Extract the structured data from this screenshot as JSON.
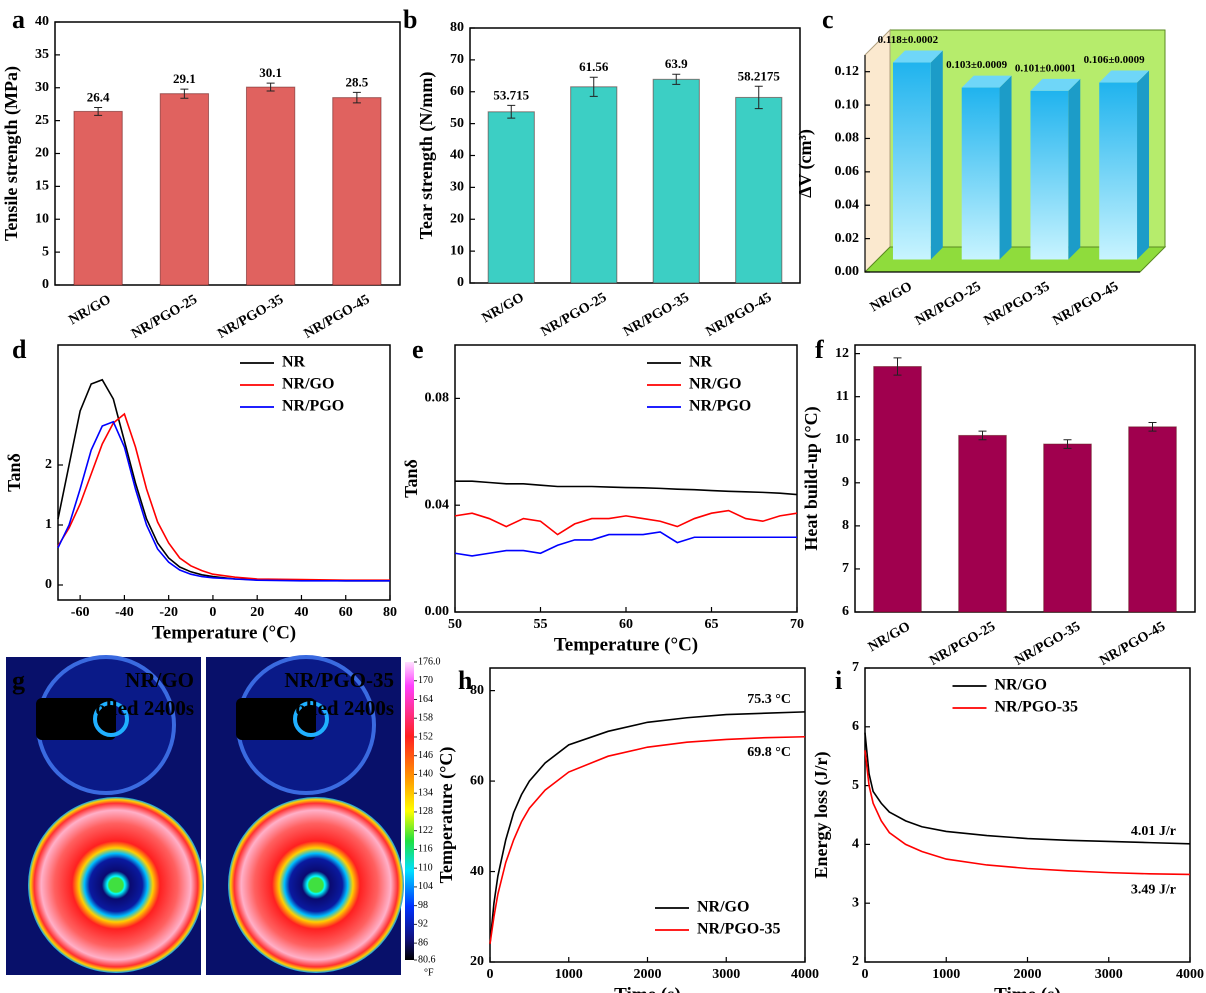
{
  "chart_data": [
    {
      "label": "a",
      "type": "bar",
      "ylabel": "Tensile strength (MPa)",
      "categories": [
        "NR/GO",
        "NR/PGO-25",
        "NR/PGO-35",
        "NR/PGO-45"
      ],
      "values": [
        26.4,
        29.1,
        30.1,
        28.5
      ],
      "errors": [
        0.6,
        0.7,
        0.6,
        0.8
      ],
      "data_labels": true,
      "color": "#e0625f",
      "ylim": [
        0,
        40
      ],
      "yticks": [
        0,
        5,
        10,
        15,
        20,
        25,
        30,
        35,
        40
      ]
    },
    {
      "label": "b",
      "type": "bar",
      "ylabel": "Tear strength (N/mm)",
      "categories": [
        "NR/GO",
        "NR/PGO-25",
        "NR/PGO-35",
        "NR/PGO-45"
      ],
      "values": [
        53.715,
        61.56,
        63.9,
        58.2175
      ],
      "errors": [
        2,
        3,
        1.6,
        3.5
      ],
      "data_labels": true,
      "color": "#3ccfc4",
      "ylim": [
        0,
        80
      ],
      "yticks": [
        0,
        10,
        20,
        30,
        40,
        50,
        60,
        70,
        80
      ]
    },
    {
      "label": "c",
      "type": "bar3d",
      "ylabel": "ΔV (cm³)",
      "categories": [
        "NR/GO",
        "NR/PGO-25",
        "NR/PGO-35",
        "NR/PGO-45"
      ],
      "values": [
        0.118,
        0.103,
        0.101,
        0.106
      ],
      "value_labels": [
        "0.118±0.0002",
        "0.103±0.0009",
        "0.101±0.0001",
        "0.106±0.0009"
      ],
      "color": "#35c2ee",
      "ylim": [
        0,
        0.13
      ],
      "yticks": [
        {
          "value": 0,
          "label": "0.00"
        },
        {
          "value": 0.02,
          "label": "0.02"
        },
        {
          "value": 0.04,
          "label": "0.04"
        },
        {
          "value": 0.06,
          "label": "0.06"
        },
        {
          "value": 0.08,
          "label": "0.08"
        },
        {
          "value": 0.1,
          "label": "0.10"
        },
        {
          "value": 0.12,
          "label": "0.12"
        }
      ]
    },
    {
      "label": "d",
      "type": "line",
      "xlabel": "Temperature (°C)",
      "ylabel": "Tanδ",
      "legend": "upper right",
      "x": [
        -70,
        -65,
        -60,
        -55,
        -50,
        -45,
        -40,
        -35,
        -30,
        -25,
        -20,
        -15,
        -10,
        -5,
        0,
        10,
        20,
        40,
        60,
        80
      ],
      "series": [
        {
          "name": "NR",
          "color": "#000000",
          "values": [
            1.1,
            2.0,
            2.9,
            3.35,
            3.42,
            3.1,
            2.4,
            1.7,
            1.1,
            0.7,
            0.45,
            0.3,
            0.22,
            0.17,
            0.14,
            0.1,
            0.09,
            0.08,
            0.07,
            0.07
          ]
        },
        {
          "name": "NR/GO",
          "color": "#ff0000",
          "values": [
            0.65,
            0.95,
            1.35,
            1.85,
            2.35,
            2.7,
            2.85,
            2.3,
            1.6,
            1.05,
            0.7,
            0.45,
            0.32,
            0.24,
            0.18,
            0.13,
            0.1,
            0.09,
            0.08,
            0.08
          ]
        },
        {
          "name": "NR/PGO",
          "color": "#0000ff",
          "values": [
            0.62,
            1.0,
            1.6,
            2.25,
            2.65,
            2.72,
            2.3,
            1.6,
            1.0,
            0.6,
            0.38,
            0.25,
            0.18,
            0.14,
            0.12,
            0.1,
            0.08,
            0.07,
            0.07,
            0.07
          ]
        }
      ],
      "xlim": [
        -70,
        80
      ],
      "xticks": [
        -60,
        -40,
        -20,
        0,
        20,
        40,
        60,
        80
      ],
      "ylim": [
        -0.25,
        4.0
      ],
      "yticks": [
        0,
        1,
        2
      ]
    },
    {
      "label": "e",
      "type": "line",
      "xlabel": "Temperature (°C)",
      "ylabel": "Tanδ",
      "legend": "upper right",
      "x": [
        50,
        51,
        52,
        53,
        54,
        55,
        56,
        57,
        58,
        59,
        60,
        61,
        62,
        63,
        64,
        65,
        66,
        67,
        68,
        69,
        70
      ],
      "series": [
        {
          "name": "NR",
          "color": "#000000",
          "values": [
            0.049,
            0.049,
            0.0485,
            0.048,
            0.048,
            0.0475,
            0.047,
            0.047,
            0.047,
            0.0468,
            0.0466,
            0.0465,
            0.0463,
            0.046,
            0.0458,
            0.0455,
            0.0452,
            0.045,
            0.0448,
            0.0445,
            0.044
          ]
        },
        {
          "name": "NR/GO",
          "color": "#ff0000",
          "values": [
            0.036,
            0.037,
            0.035,
            0.032,
            0.035,
            0.034,
            0.029,
            0.033,
            0.035,
            0.035,
            0.036,
            0.035,
            0.034,
            0.032,
            0.035,
            0.037,
            0.038,
            0.035,
            0.034,
            0.036,
            0.037
          ]
        },
        {
          "name": "NR/PGO",
          "color": "#0000ff",
          "values": [
            0.022,
            0.021,
            0.022,
            0.023,
            0.023,
            0.022,
            0.025,
            0.027,
            0.027,
            0.029,
            0.029,
            0.029,
            0.03,
            0.026,
            0.028,
            0.028,
            0.028,
            0.028,
            0.028,
            0.028,
            0.028
          ]
        }
      ],
      "xlim": [
        50,
        70
      ],
      "xticks": [
        50,
        55,
        60,
        65,
        70
      ],
      "ylim": [
        0,
        0.1
      ],
      "yticks": [
        {
          "value": 0,
          "label": "0.00"
        },
        {
          "value": 0.04,
          "label": "0.04"
        },
        {
          "value": 0.08,
          "label": "0.08"
        }
      ]
    },
    {
      "label": "f",
      "type": "bar",
      "ylabel": "Heat build-up (°C)",
      "categories": [
        "NR/GO",
        "NR/PGO-25",
        "NR/PGO-35",
        "NR/PGO-45"
      ],
      "values": [
        11.7,
        10.1,
        9.9,
        10.3
      ],
      "errors": [
        0.2,
        0.1,
        0.1,
        0.1
      ],
      "color": "#a0004e",
      "ylim": [
        6,
        12.2
      ],
      "yticks": [
        6,
        7,
        8,
        9,
        10,
        11,
        12
      ]
    },
    {
      "label": "g",
      "type": "thermal-image",
      "images": [
        {
          "title": "NR/GO",
          "subtitle": "rolled 2400s"
        },
        {
          "title": "NR/PGO-35",
          "subtitle": "rolled 2400s"
        }
      ],
      "colorbar_ticks": [
        {
          "value": 176,
          "label": "176.0"
        },
        170,
        164,
        158,
        152,
        146,
        140,
        134,
        128,
        122,
        116,
        110,
        104,
        98,
        92,
        86,
        80.6
      ],
      "colorbar_unit": "°F"
    },
    {
      "label": "h",
      "type": "line",
      "xlabel": "Time (s)",
      "ylabel": "Temperature (°C)",
      "legend": "lower right",
      "x": [
        0,
        50,
        100,
        200,
        300,
        400,
        500,
        700,
        1000,
        1500,
        2000,
        2500,
        3000,
        3500,
        4000
      ],
      "series": [
        {
          "name": "NR/GO",
          "color": "#000000",
          "values": [
            24,
            33,
            39,
            47,
            53,
            57,
            60,
            64,
            68,
            71,
            73,
            74,
            74.7,
            75,
            75.3
          ]
        },
        {
          "name": "NR/PGO-35",
          "color": "#ff0000",
          "values": [
            24,
            30,
            35,
            42,
            47,
            51,
            54,
            58,
            62,
            65.5,
            67.5,
            68.6,
            69.2,
            69.6,
            69.8
          ]
        }
      ],
      "annotations": [
        "75.3 °C",
        "69.8 °C"
      ],
      "xlim": [
        0,
        4000
      ],
      "xticks": [
        0,
        1000,
        2000,
        3000,
        4000
      ],
      "ylim": [
        20,
        85
      ],
      "yticks": [
        20,
        40,
        60,
        80
      ]
    },
    {
      "label": "i",
      "type": "line",
      "xlabel": "Time (s)",
      "ylabel": "Energy loss (J/r)",
      "legend": "upper center",
      "x": [
        0,
        50,
        100,
        200,
        300,
        500,
        700,
        1000,
        1500,
        2000,
        2500,
        3000,
        3500,
        4000
      ],
      "series": [
        {
          "name": "NR/GO",
          "color": "#000000",
          "values": [
            5.9,
            5.2,
            4.9,
            4.7,
            4.55,
            4.4,
            4.3,
            4.22,
            4.15,
            4.1,
            4.07,
            4.05,
            4.03,
            4.01
          ]
        },
        {
          "name": "NR/PGO-35",
          "color": "#ff0000",
          "values": [
            5.6,
            5.0,
            4.7,
            4.4,
            4.2,
            4.0,
            3.88,
            3.75,
            3.65,
            3.59,
            3.55,
            3.52,
            3.5,
            3.49
          ]
        }
      ],
      "annotations": [
        "4.01 J/r",
        "3.49 J/r"
      ],
      "xlim": [
        0,
        4000
      ],
      "xticks": [
        0,
        1000,
        2000,
        3000,
        4000
      ],
      "ylim": [
        2,
        7
      ],
      "yticks": [
        2,
        3,
        4,
        5,
        6,
        7
      ]
    }
  ]
}
